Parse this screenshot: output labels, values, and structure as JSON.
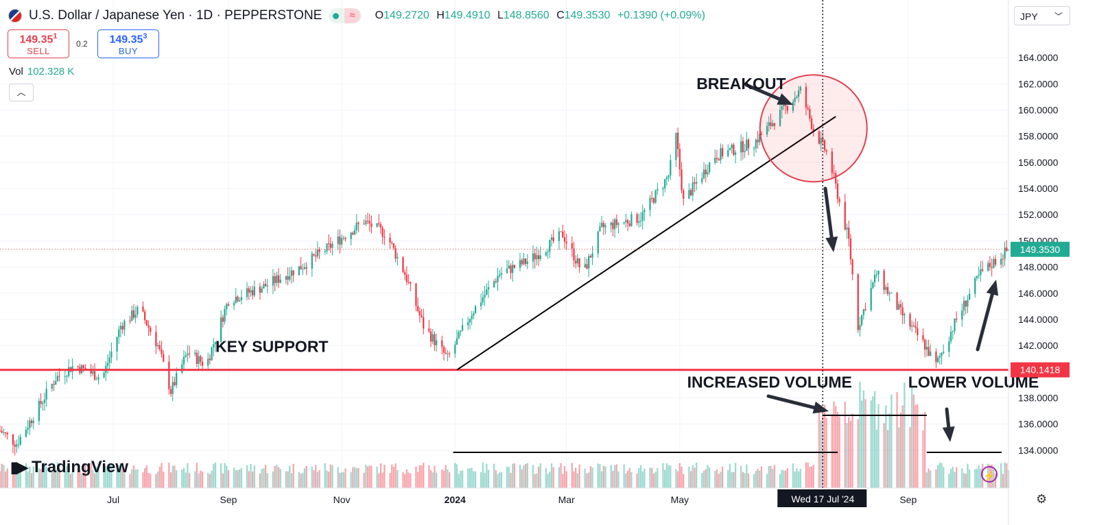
{
  "header": {
    "symbol": "U.S. Dollar / Japanese Yen · 1D · PEPPERSTONE",
    "open_label": "O",
    "open": "149.2720",
    "high_label": "H",
    "high": "149.4910",
    "low_label": "L",
    "low": "148.8560",
    "close_label": "C",
    "close": "149.3530",
    "change": "+0.1390 (+0.09%)"
  },
  "trade": {
    "sell_price": "149.35",
    "sell_sup": "1",
    "sell_label": "SELL",
    "spread": "0.2",
    "buy_price": "149.35",
    "buy_sup": "3",
    "buy_label": "BUY"
  },
  "volume": {
    "label": "Vol",
    "value": "102.328 K"
  },
  "currency": "JPY",
  "branding": "TradingView",
  "icons": [
    "us-flag-icon",
    "market-open-dot-icon",
    "wave-icon",
    "chevron-up-icon",
    "chevron-down-icon",
    "tradingview-logo-icon",
    "lightning-icon",
    "gear-icon"
  ],
  "colors": {
    "up": "#22ab94",
    "down": "#f23645",
    "support_line": "#f23645",
    "price_tag": "#22ab94",
    "annotation": "#131722"
  },
  "chart_data": {
    "type": "candlestick",
    "ylim": [
      133.0,
      165.0
    ],
    "y_ticks": [
      "164.0000",
      "162.0000",
      "160.0000",
      "158.0000",
      "156.0000",
      "154.0000",
      "152.0000",
      "150.0000",
      "148.0000",
      "146.0000",
      "144.0000",
      "142.0000",
      "140.0000",
      "138.0000",
      "136.0000",
      "134.0000"
    ],
    "x_ticks": [
      {
        "label": "Jul",
        "date": "2023-07-01"
      },
      {
        "label": "Sep",
        "date": "2023-09-01"
      },
      {
        "label": "Nov",
        "date": "2023-11-01"
      },
      {
        "label": "2024",
        "date": "2024-01-01"
      },
      {
        "label": "Mar",
        "date": "2024-03-01"
      },
      {
        "label": "May",
        "date": "2024-05-01"
      },
      {
        "label": "Sep",
        "date": "2024-09-01"
      }
    ],
    "x_range": [
      "2023-05-01",
      "2024-10-25"
    ],
    "crosshair": {
      "date": "2024-07-17",
      "label": "Wed 17 Jul '24"
    },
    "current_price": {
      "value": 149.353,
      "label": "149.3530"
    },
    "support": {
      "value": 140.1418,
      "label": "140.1418"
    },
    "price_path": [
      {
        "date": "2023-05-01",
        "price": 135.5
      },
      {
        "date": "2023-05-10",
        "price": 134.5
      },
      {
        "date": "2023-05-31",
        "price": 139.5
      },
      {
        "date": "2023-06-10",
        "price": 140.5
      },
      {
        "date": "2023-06-25",
        "price": 139.5
      },
      {
        "date": "2023-07-05",
        "price": 143.5
      },
      {
        "date": "2023-07-15",
        "price": 144.8
      },
      {
        "date": "2023-07-25",
        "price": 142.0
      },
      {
        "date": "2023-08-01",
        "price": 138.5
      },
      {
        "date": "2023-08-10",
        "price": 141.5
      },
      {
        "date": "2023-08-20",
        "price": 140.5
      },
      {
        "date": "2023-09-01",
        "price": 145.5
      },
      {
        "date": "2023-09-20",
        "price": 146.5
      },
      {
        "date": "2023-10-10",
        "price": 148.0
      },
      {
        "date": "2023-10-25",
        "price": 149.5
      },
      {
        "date": "2023-11-13",
        "price": 151.5
      },
      {
        "date": "2023-11-25",
        "price": 150.5
      },
      {
        "date": "2023-12-05",
        "price": 147.5
      },
      {
        "date": "2023-12-15",
        "price": 143.5
      },
      {
        "date": "2023-12-28",
        "price": 141.0
      },
      {
        "date": "2024-01-10",
        "price": 144.5
      },
      {
        "date": "2024-01-25",
        "price": 147.5
      },
      {
        "date": "2024-02-10",
        "price": 148.5
      },
      {
        "date": "2024-02-28",
        "price": 150.5
      },
      {
        "date": "2024-03-10",
        "price": 147.5
      },
      {
        "date": "2024-03-20",
        "price": 151.0
      },
      {
        "date": "2024-04-10",
        "price": 151.8
      },
      {
        "date": "2024-04-25",
        "price": 155.0
      },
      {
        "date": "2024-04-29",
        "price": 158.0
      },
      {
        "date": "2024-05-03",
        "price": 153.0
      },
      {
        "date": "2024-05-20",
        "price": 156.5
      },
      {
        "date": "2024-06-10",
        "price": 157.5
      },
      {
        "date": "2024-06-26",
        "price": 160.0
      },
      {
        "date": "2024-07-05",
        "price": 161.5
      },
      {
        "date": "2024-07-12",
        "price": 158.5
      },
      {
        "date": "2024-07-20",
        "price": 156.5
      },
      {
        "date": "2024-07-31",
        "price": 150.0
      },
      {
        "date": "2024-08-05",
        "price": 143.5
      },
      {
        "date": "2024-08-15",
        "price": 147.5
      },
      {
        "date": "2024-08-28",
        "price": 144.5
      },
      {
        "date": "2024-09-10",
        "price": 142.0
      },
      {
        "date": "2024-09-16",
        "price": 140.5
      },
      {
        "date": "2024-09-27",
        "price": 144.0
      },
      {
        "date": "2024-10-10",
        "price": 147.5
      },
      {
        "date": "2024-10-25",
        "price": 149.35
      }
    ],
    "volume_levels": [
      {
        "from": "2023-05-01",
        "to": "2024-07-12",
        "level": 0.18
      },
      {
        "from": "2024-07-15",
        "to": "2024-09-10",
        "level": 0.75
      },
      {
        "from": "2024-09-11",
        "to": "2024-10-25",
        "level": 0.18
      }
    ],
    "trendline": {
      "from": {
        "date": "2024-01-02",
        "price": 140.14
      },
      "to": {
        "date": "2024-07-24",
        "price": 159.5
      }
    },
    "annotations": [
      {
        "text": "BREAKOUT",
        "date": "2024-05-10",
        "price": 161.6
      },
      {
        "text": "KEY SUPPORT",
        "date": "2023-08-25",
        "price": 141.5
      },
      {
        "text": "INCREASED VOLUME",
        "date": "2024-05-05",
        "price": 138.8
      },
      {
        "text": "LOWER VOLUME",
        "date": "2024-09-01",
        "price": 138.8
      }
    ]
  }
}
